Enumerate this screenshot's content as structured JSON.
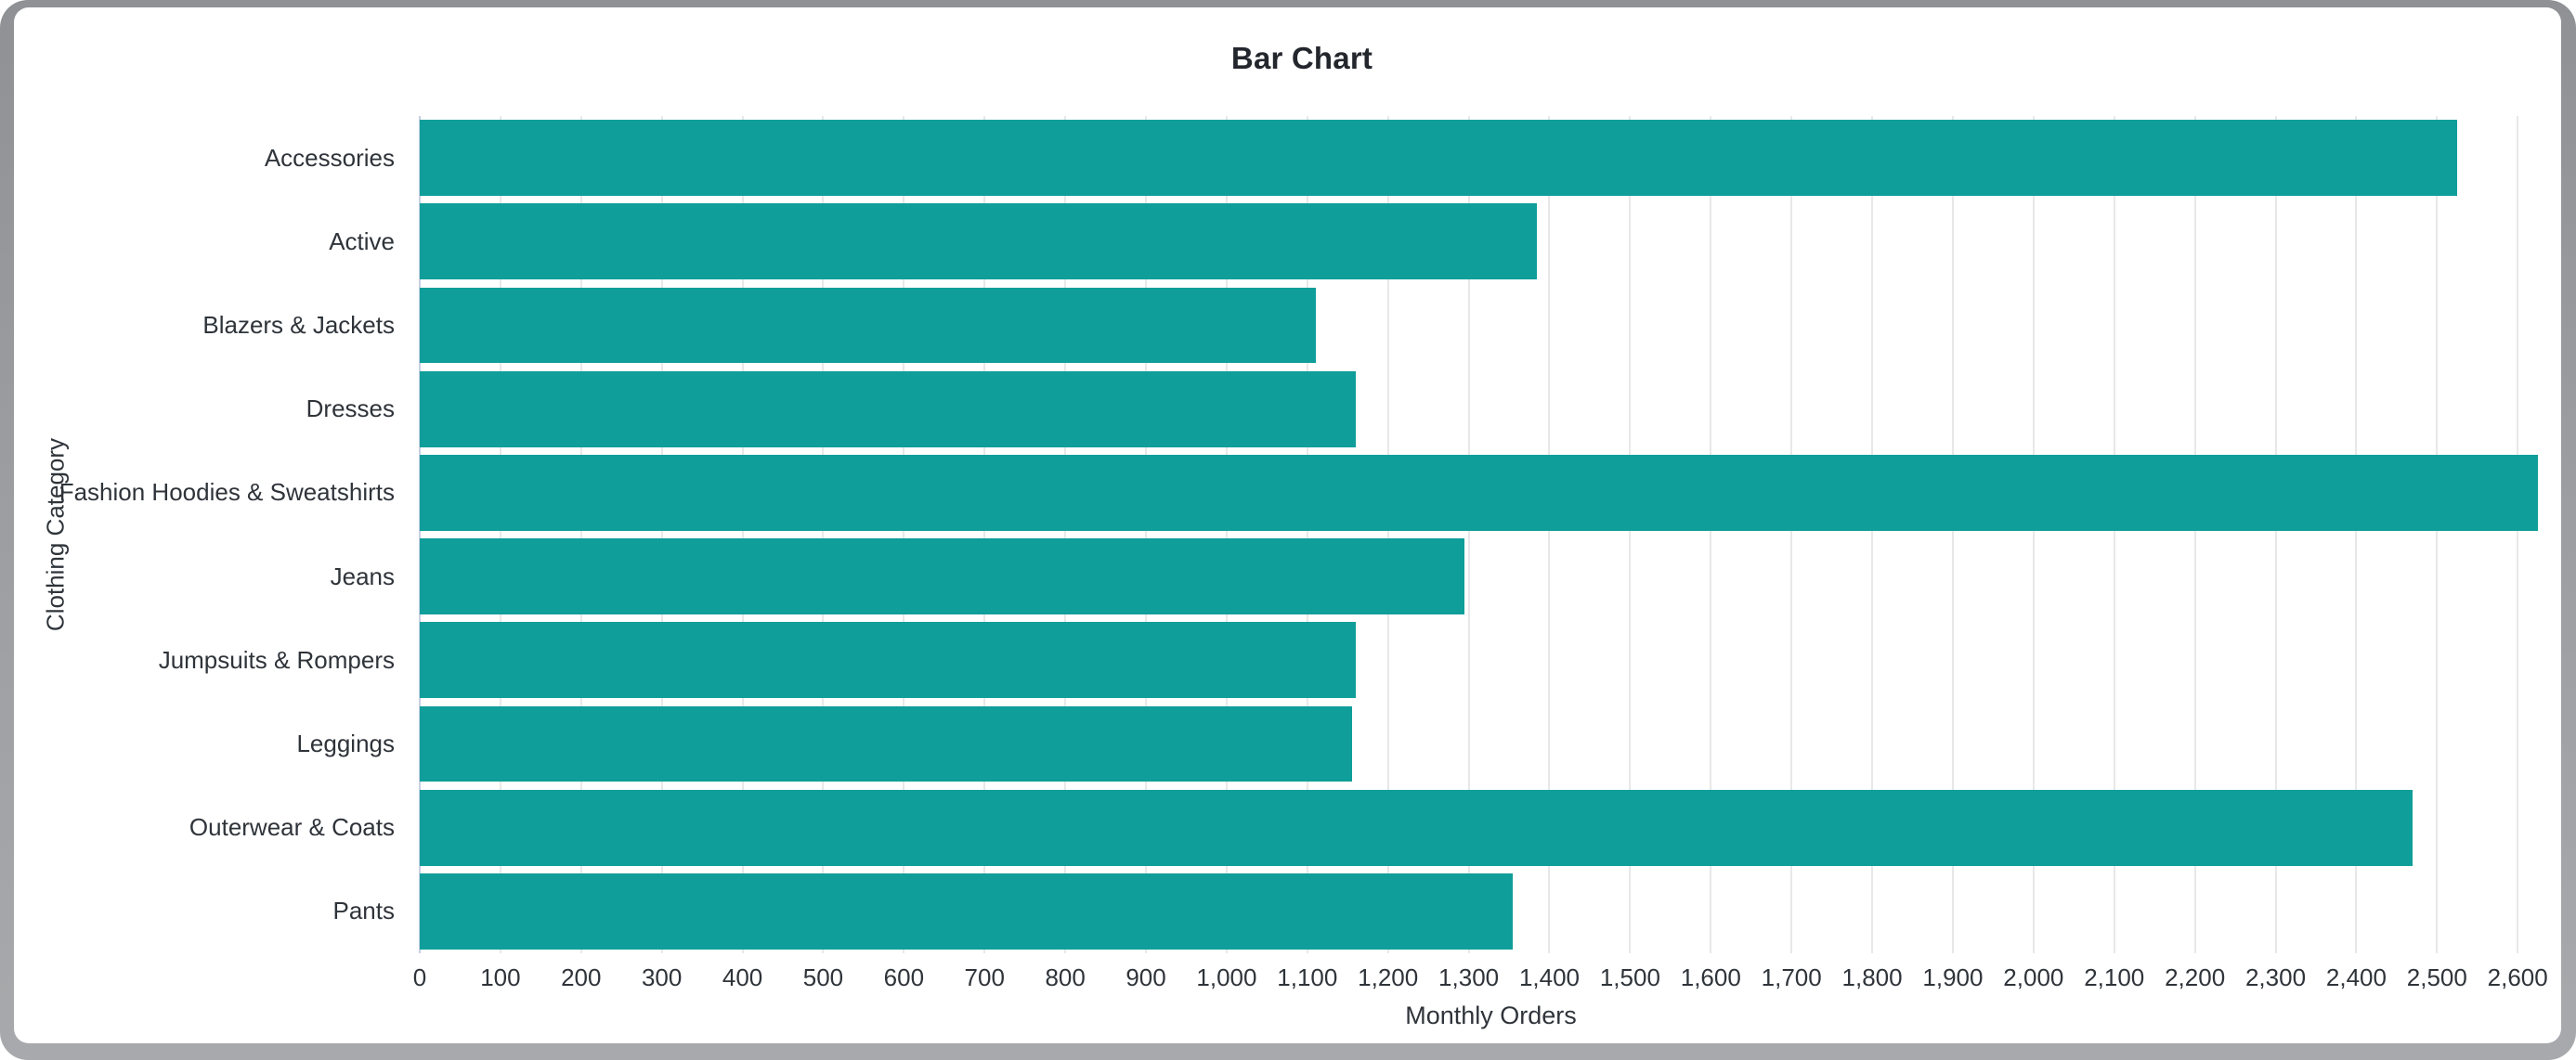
{
  "window": {
    "frame_color": "#9b9da1",
    "card_color": "#ffffff"
  },
  "chart_data": {
    "type": "bar",
    "orientation": "horizontal",
    "title": "Bar Chart",
    "xlabel": "Monthly Orders",
    "ylabel": "Clothing Category",
    "categories": [
      "Accessories",
      "Active",
      "Blazers & Jackets",
      "Dresses",
      "Fashion Hoodies & Sweatshirts",
      "Jeans",
      "Jumpsuits & Rompers",
      "Leggings",
      "Outerwear & Coats",
      "Pants"
    ],
    "values": [
      2525,
      1385,
      1110,
      1160,
      2625,
      1295,
      1160,
      1155,
      2470,
      1355
    ],
    "series_name": "Monthly Orders",
    "xlim": [
      0,
      2655
    ],
    "xtick_interval": 100,
    "xtick_labels": [
      "0",
      "100",
      "200",
      "300",
      "400",
      "500",
      "600",
      "700",
      "800",
      "900",
      "1,000",
      "1,100",
      "1,200",
      "1,300",
      "1,400",
      "1,500",
      "1,600",
      "1,700",
      "1,800",
      "1,900",
      "2,000",
      "2,100",
      "2,200",
      "2,300",
      "2,400",
      "2,500",
      "2,600"
    ],
    "grid": true,
    "legend": "none",
    "bar_color": "#0f9e99",
    "gridline_color": "#e8e8e8",
    "baseline_color": "#c8cfe2",
    "text_color": "#2f343a",
    "title_color": "#23272d",
    "bar_fill_fraction": 0.905
  }
}
